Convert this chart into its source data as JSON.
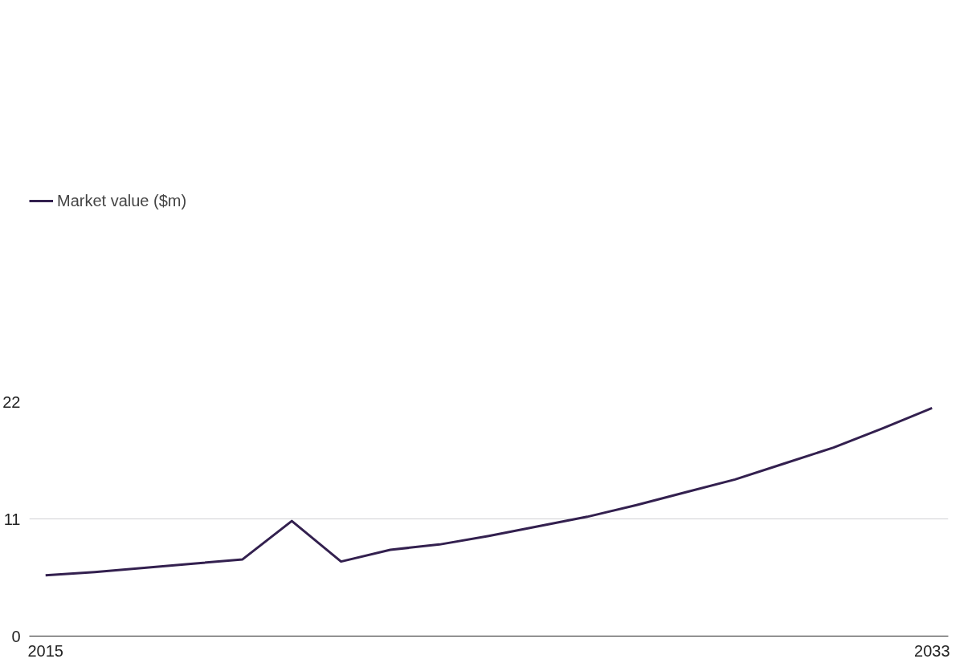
{
  "chart_data": {
    "type": "line",
    "x": [
      2015,
      2016,
      2017,
      2018,
      2019,
      2020,
      2021,
      2022,
      2023,
      2024,
      2025,
      2026,
      2027,
      2028,
      2029,
      2030,
      2031,
      2032,
      2033
    ],
    "series": [
      {
        "name": "Market value ($m)",
        "color": "#33204f",
        "values": [
          5.7,
          6.0,
          6.4,
          6.8,
          7.2,
          10.8,
          7.0,
          8.1,
          8.6,
          9.4,
          10.3,
          11.2,
          12.3,
          13.5,
          14.7,
          16.2,
          17.7,
          19.5,
          21.4
        ]
      }
    ],
    "xlim": [
      2014.67,
      2033.33
    ],
    "xticks": [
      2015,
      2033
    ],
    "ylim": [
      0,
      22
    ],
    "yticks": [
      0,
      11,
      22
    ],
    "grid": "y",
    "legend": "top left",
    "marker": "none",
    "line_style": "solid"
  }
}
